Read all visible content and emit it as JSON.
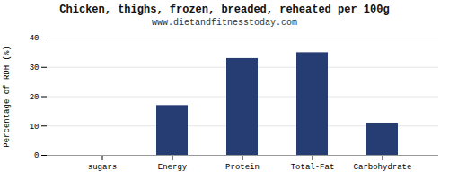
{
  "chart_data": {
    "type": "bar",
    "title": "Chicken, thighs, frozen, breaded, reheated per 100g",
    "subtitle": "www.dietandfitnesstoday.com",
    "categories": [
      "sugars",
      "Energy",
      "Protein",
      "Total-Fat",
      "Carbohydrate"
    ],
    "values": [
      0,
      17,
      33,
      35,
      11
    ],
    "color": "#263d73",
    "ylabel": "Percentage of RDH (%)",
    "ylim": [
      0,
      40
    ],
    "yticks": [
      0,
      10,
      20,
      30,
      40
    ],
    "grid": true
  }
}
